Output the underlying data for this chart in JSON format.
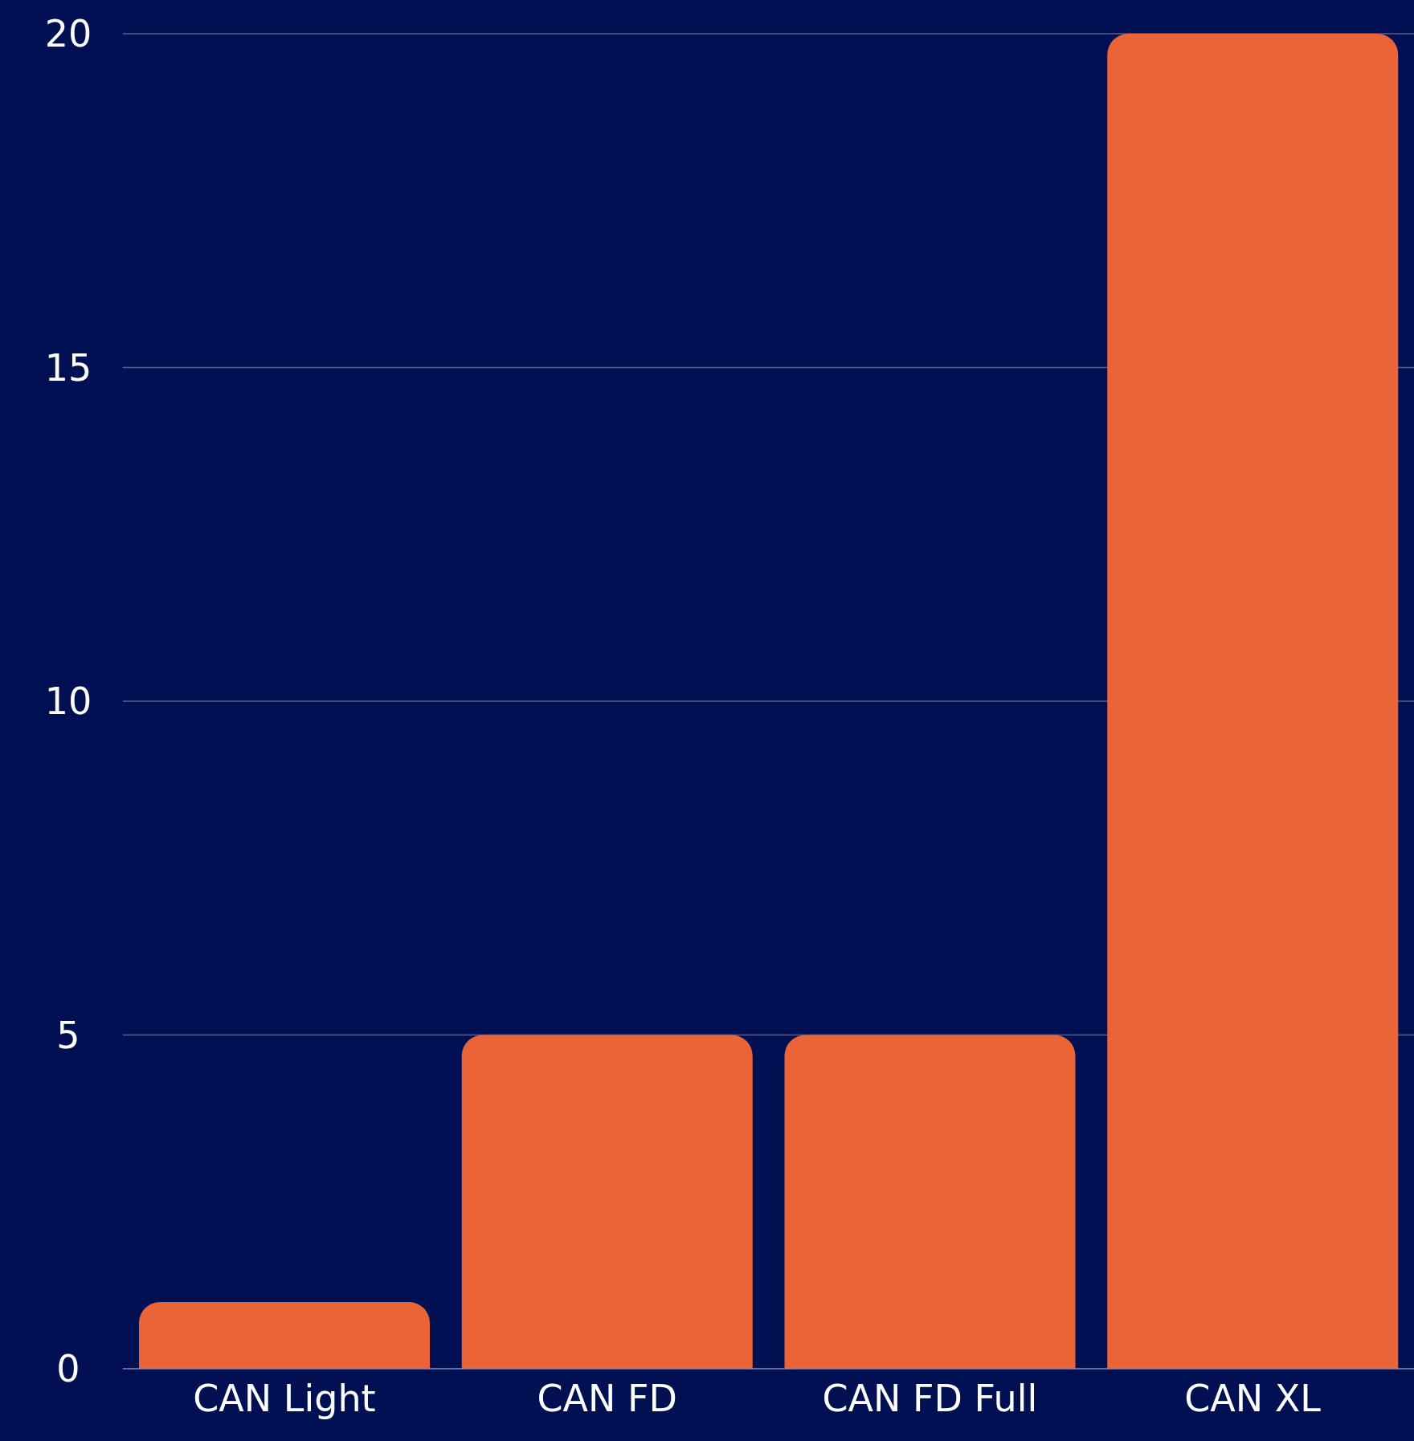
{
  "chart_data": {
    "type": "bar",
    "categories": [
      "CAN Light",
      "CAN FD",
      "CAN FD Full",
      "CAN XL"
    ],
    "values": [
      1,
      5,
      5,
      20
    ],
    "color": "#eb6437",
    "ylim": [
      0,
      20
    ],
    "yticks": [
      0,
      5,
      10,
      15,
      20
    ],
    "grid": "y",
    "legend": false
  }
}
